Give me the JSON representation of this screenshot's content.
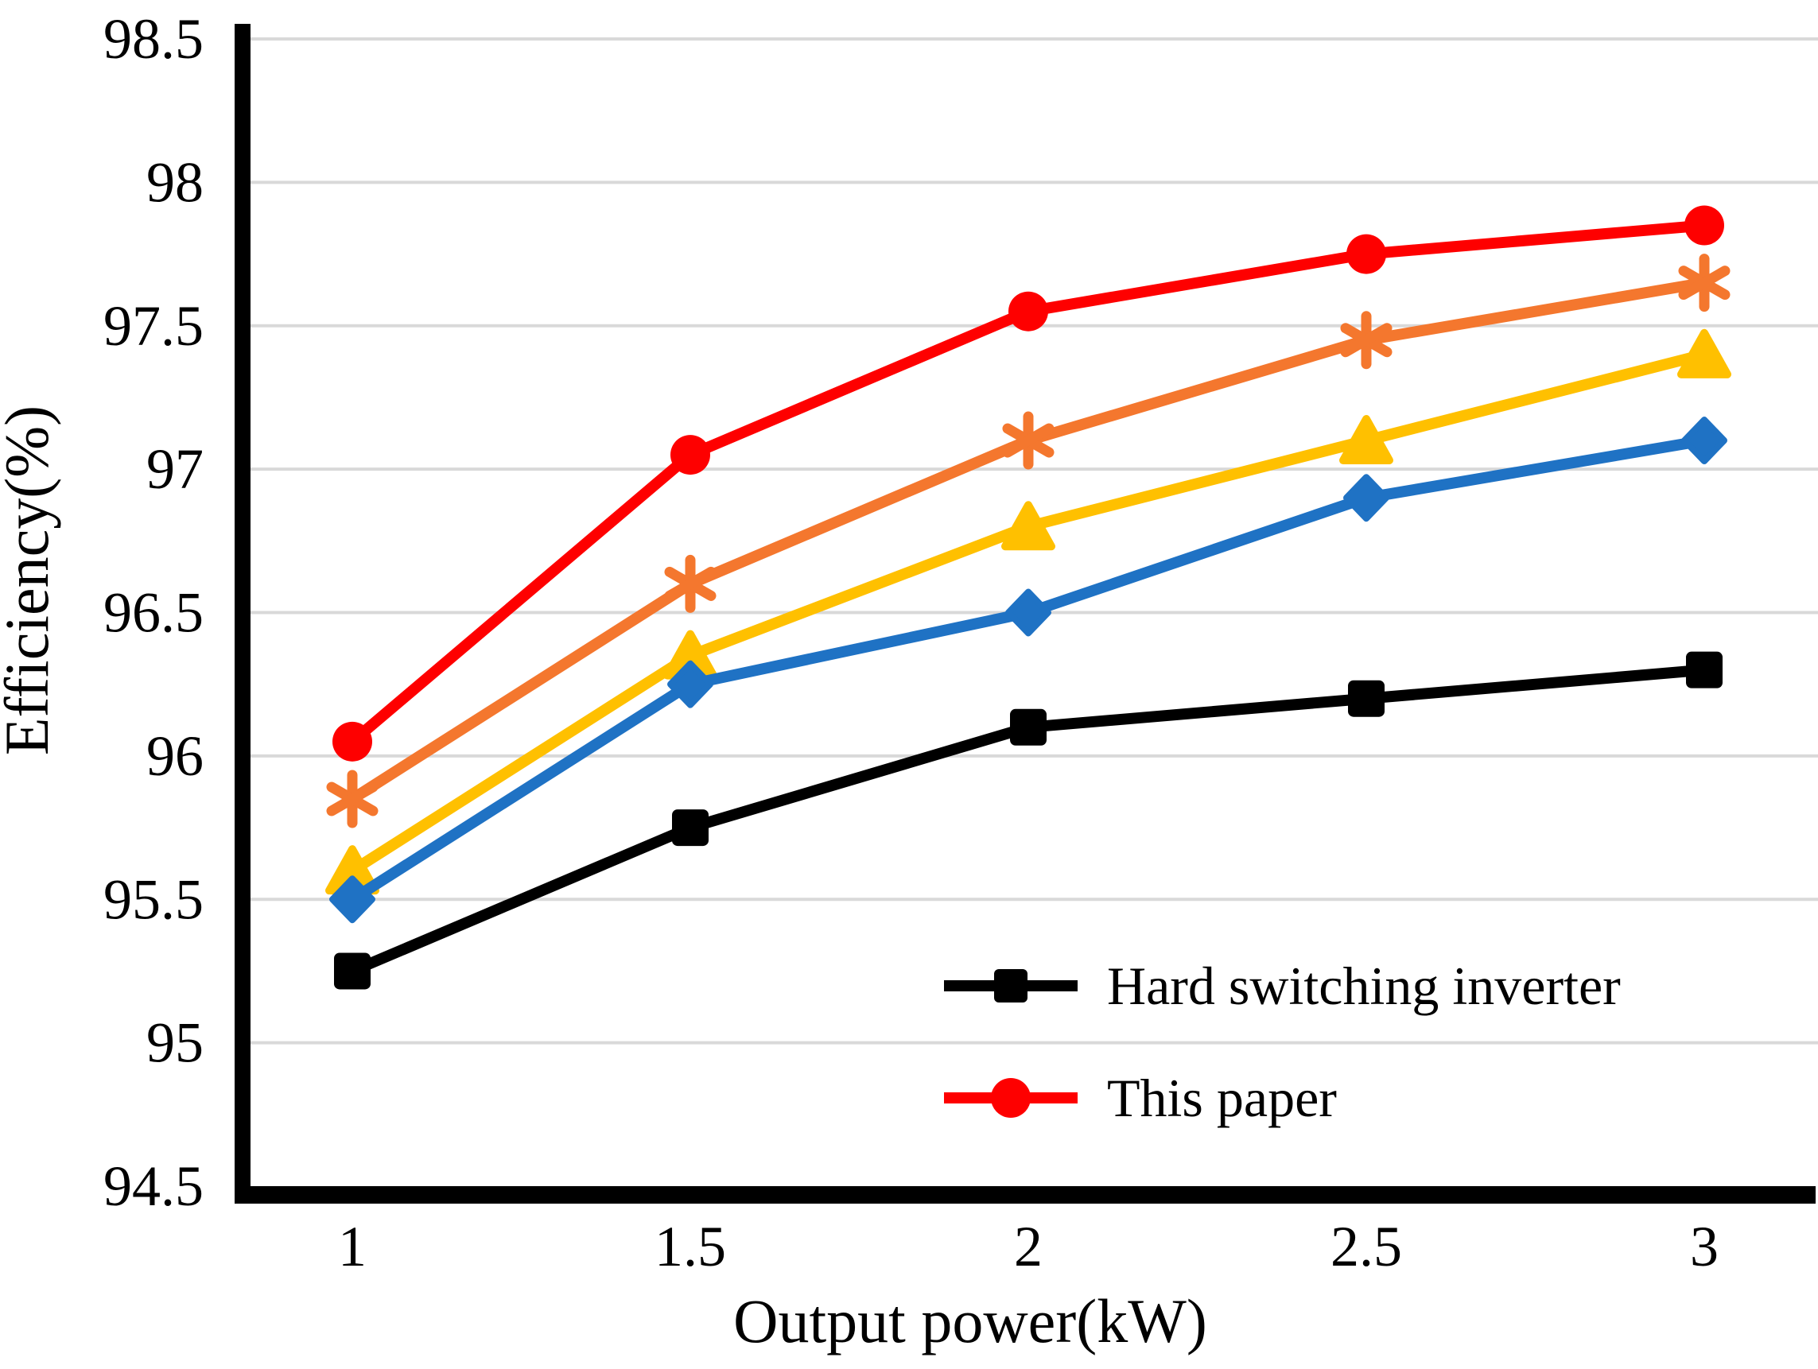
{
  "chart_data": {
    "type": "line",
    "title": "",
    "xlabel": "Output power(kW)",
    "ylabel": "Efficiency(%)",
    "x": [
      1,
      1.5,
      2,
      2.5,
      3
    ],
    "x_ticks": [
      "1",
      "1.5",
      "2",
      "2.5",
      "3"
    ],
    "y_ticks": [
      "94.5",
      "95",
      "95.5",
      "96",
      "96.5",
      "97",
      "97.5",
      "98",
      "98.5"
    ],
    "ylim": [
      94.5,
      98.5
    ],
    "grid": "horizontal-only",
    "gridline_color": "#D9D9D9",
    "axis_color": "#000000",
    "series": [
      {
        "name": "Hard switching inverter",
        "marker": "square",
        "color": "#000000",
        "values": [
          95.25,
          95.75,
          96.1,
          96.2,
          96.3
        ],
        "in_legend": true
      },
      {
        "name": "This paper",
        "marker": "circle",
        "color": "#FE0000",
        "values": [
          96.05,
          97.05,
          97.55,
          97.75,
          97.85
        ],
        "in_legend": true
      },
      {
        "name": "series-orange-asterisk",
        "marker": "asterisk",
        "color": "#F4772E",
        "values": [
          95.85,
          96.6,
          97.1,
          97.45,
          97.65
        ],
        "in_legend": false
      },
      {
        "name": "series-yellow-triangle",
        "marker": "triangle",
        "color": "#FFC000",
        "values": [
          95.6,
          96.35,
          96.8,
          97.1,
          97.4
        ],
        "in_legend": false
      },
      {
        "name": "series-blue-diamond",
        "marker": "diamond",
        "color": "#1F72C4",
        "values": [
          95.5,
          96.25,
          96.5,
          96.9,
          97.1
        ],
        "in_legend": false
      }
    ],
    "legend": {
      "position": "inside-bottom-right",
      "entries": [
        "Hard switching inverter",
        "This paper"
      ]
    }
  }
}
